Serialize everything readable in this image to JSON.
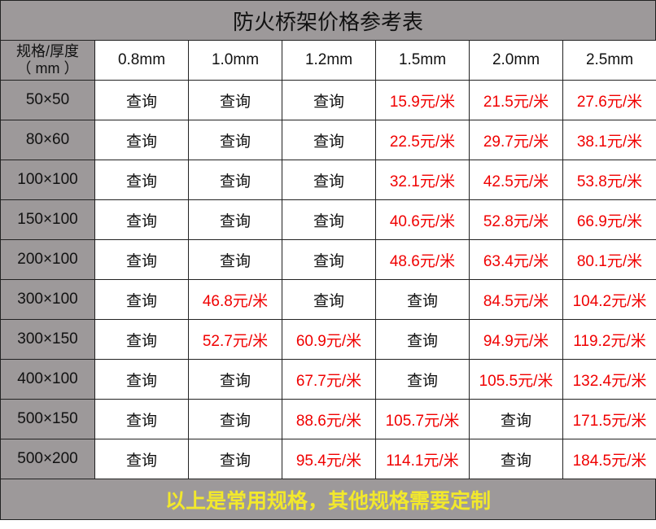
{
  "title": "防火桥架价格参考表",
  "header": {
    "corner_line1": "规格/厚度",
    "corner_line2": "（ mm ）",
    "thicknesses": [
      "0.8mm",
      "1.0mm",
      "1.2mm",
      "1.5mm",
      "2.0mm",
      "2.5mm"
    ]
  },
  "rows": [
    {
      "size": "50×50",
      "cells": [
        "查询",
        "查询",
        "查询",
        "15.9元/米",
        "21.5元/米",
        "27.6元/米"
      ]
    },
    {
      "size": "80×60",
      "cells": [
        "查询",
        "查询",
        "查询",
        "22.5元/米",
        "29.7元/米",
        "38.1元/米"
      ]
    },
    {
      "size": "100×100",
      "cells": [
        "查询",
        "查询",
        "查询",
        "32.1元/米",
        "42.5元/米",
        "53.8元/米"
      ]
    },
    {
      "size": "150×100",
      "cells": [
        "查询",
        "查询",
        "查询",
        "40.6元/米",
        "52.8元/米",
        "66.9元/米"
      ]
    },
    {
      "size": "200×100",
      "cells": [
        "查询",
        "查询",
        "查询",
        "48.6元/米",
        "63.4元/米",
        "80.1元/米"
      ]
    },
    {
      "size": "300×100",
      "cells": [
        "查询",
        "46.8元/米",
        "查询",
        "查询",
        "84.5元/米",
        "104.2元/米"
      ]
    },
    {
      "size": "300×150",
      "cells": [
        "查询",
        "52.7元/米",
        "60.9元/米",
        "查询",
        "94.9元/米",
        "119.2元/米"
      ]
    },
    {
      "size": "400×100",
      "cells": [
        "查询",
        "查询",
        "67.7元/米",
        "查询",
        "105.5元/米",
        "132.4元/米"
      ]
    },
    {
      "size": "500×150",
      "cells": [
        "查询",
        "查询",
        "88.6元/米",
        "105.7元/米",
        "查询",
        "171.5元/米"
      ]
    },
    {
      "size": "500×200",
      "cells": [
        "查询",
        "查询",
        "95.4元/米",
        "114.1元/米",
        "查询",
        "184.5元/米"
      ]
    }
  ],
  "footer": "以上是常用规格，其他规格需要定制",
  "colors": {
    "header_bg": "#9d999a",
    "price": "#f00000",
    "footer_text": "#f2e82c"
  }
}
